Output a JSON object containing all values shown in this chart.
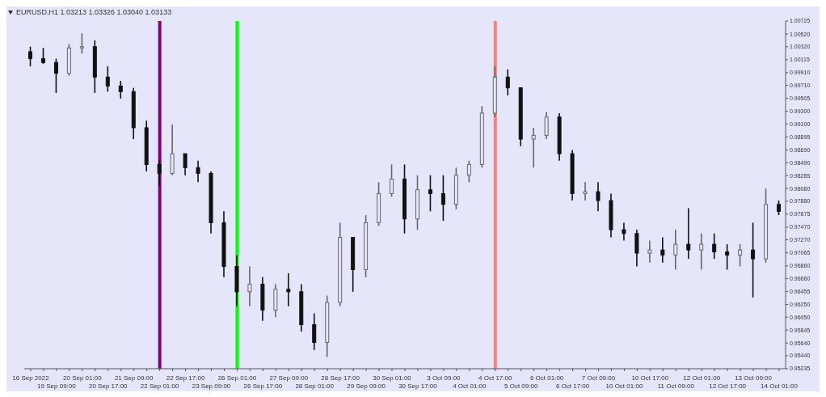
{
  "chart_data": {
    "type": "candlestick",
    "title": "EURUSD,H1  1.03213 1.03326 1.03040 1.03133",
    "categories": [
      "16 Sep 2022",
      null,
      "19 Sep 09:00",
      null,
      "20 Sep 01:00",
      null,
      "20 Sep 17:00",
      null,
      "21 Sep 09:00",
      null,
      "22 Sep 01:00",
      null,
      "22 Sep 17:00",
      null,
      "23 Sep 09:00",
      null,
      "26 Sep 01:00",
      null,
      "26 Sep 17:00",
      null,
      "27 Sep 09:00",
      null,
      "28 Sep 01:00",
      null,
      "28 Sep 17:00",
      null,
      "29 Sep 09:00",
      null,
      "30 Sep 01:00",
      null,
      "30 Sep 17:00",
      null,
      "3 Oct 09:00",
      null,
      "4 Oct 01:00",
      null,
      "4 Oct 17:00",
      null,
      "5 Oct 09:00",
      null,
      "6 Oct 01:00",
      null,
      "6 Oct 17:00",
      null,
      "7 Oct 09:00",
      null,
      "10 Oct 01:00",
      null,
      "10 Oct 17:00",
      null,
      "11 Oct 09:00",
      null,
      "12 Oct 01:00",
      null,
      "12 Oct 17:00",
      null,
      "13 Oct 09:00",
      null,
      "14 Oct 01:00"
    ],
    "ohlc": [
      [
        1.0024,
        1.0032,
        1.0001,
        1.0013
      ],
      [
        1.0013,
        1.003,
        1.0005,
        1.0007
      ],
      [
        1.0007,
        1.0013,
        0.9959,
        0.999
      ],
      [
        0.999,
        1.0036,
        0.9986,
        1.003
      ],
      [
        1.003,
        1.0053,
        1.0021,
        1.0032
      ],
      [
        1.0032,
        1.0042,
        0.9959,
        0.9984
      ],
      [
        0.9984,
        1.0001,
        0.9961,
        0.997
      ],
      [
        0.997,
        0.9978,
        0.995,
        0.9961
      ],
      [
        0.9961,
        0.9967,
        0.9886,
        0.9904
      ],
      [
        0.9904,
        0.9915,
        0.9835,
        0.9846
      ],
      [
        0.9846,
        0.9852,
        0.9812,
        0.9832
      ],
      [
        0.9832,
        0.9909,
        0.9829,
        0.9863
      ],
      [
        0.9863,
        0.9863,
        0.9829,
        0.9841
      ],
      [
        0.9841,
        0.9852,
        0.9818,
        0.9832
      ],
      [
        0.9832,
        0.9835,
        0.9737,
        0.9754
      ],
      [
        0.9754,
        0.9772,
        0.9668,
        0.9685
      ],
      [
        0.9685,
        0.9703,
        0.9622,
        0.9645
      ],
      [
        0.9645,
        0.9685,
        0.9622,
        0.9657
      ],
      [
        0.9657,
        0.9668,
        0.9599,
        0.9616
      ],
      [
        0.9616,
        0.9657,
        0.9605,
        0.9649
      ],
      [
        0.9649,
        0.9674,
        0.9622,
        0.9645
      ],
      [
        0.9645,
        0.9657,
        0.9582,
        0.9593
      ],
      [
        0.9593,
        0.9611,
        0.9553,
        0.9565
      ],
      [
        0.9565,
        0.9639,
        0.9542,
        0.9628
      ],
      [
        0.9628,
        0.9754,
        0.9622,
        0.9731
      ],
      [
        0.9731,
        0.9731,
        0.9645,
        0.968
      ],
      [
        0.968,
        0.9766,
        0.9668,
        0.9754
      ],
      [
        0.9754,
        0.9818,
        0.9749,
        0.98
      ],
      [
        0.98,
        0.9846,
        0.9795,
        0.9823
      ],
      [
        0.9823,
        0.9846,
        0.9737,
        0.976
      ],
      [
        0.976,
        0.9829,
        0.9743,
        0.9806
      ],
      [
        0.9806,
        0.9829,
        0.9772,
        0.98
      ],
      [
        0.98,
        0.9829,
        0.9757,
        0.9783
      ],
      [
        0.9783,
        0.9841,
        0.9775,
        0.9829
      ],
      [
        0.9829,
        0.9852,
        0.9818,
        0.9846
      ],
      [
        0.9846,
        0.9938,
        0.9841,
        0.9927
      ],
      [
        0.9927,
        1.0001,
        0.9921,
        0.9984
      ],
      [
        0.9984,
        0.9996,
        0.9955,
        0.9967
      ],
      [
        0.9967,
        0.9967,
        0.9875,
        0.9886
      ],
      [
        0.9886,
        0.9904,
        0.9841,
        0.9892
      ],
      [
        0.9892,
        0.9929,
        0.9886,
        0.9921
      ],
      [
        0.9921,
        0.9927,
        0.9852,
        0.9863
      ],
      [
        0.9863,
        0.9869,
        0.9789,
        0.98
      ],
      [
        0.98,
        0.9818,
        0.9789,
        0.9803
      ],
      [
        0.9803,
        0.9818,
        0.9772,
        0.9789
      ],
      [
        0.9789,
        0.98,
        0.9731,
        0.9743
      ],
      [
        0.9743,
        0.9754,
        0.9726,
        0.9737
      ],
      [
        0.9737,
        0.9743,
        0.9685,
        0.9706
      ],
      [
        0.9706,
        0.9726,
        0.9691,
        0.9711
      ],
      [
        0.9711,
        0.9731,
        0.9691,
        0.9703
      ],
      [
        0.9703,
        0.9743,
        0.968,
        0.972
      ],
      [
        0.972,
        0.9777,
        0.9697,
        0.9711
      ],
      [
        0.9711,
        0.9737,
        0.968,
        0.972
      ],
      [
        0.972,
        0.9737,
        0.9697,
        0.9708
      ],
      [
        0.9708,
        0.972,
        0.968,
        0.9703
      ],
      [
        0.9703,
        0.972,
        0.9685,
        0.9711
      ],
      [
        0.9711,
        0.9754,
        0.9636,
        0.9697
      ],
      [
        0.9697,
        0.9808,
        0.9691,
        0.9783
      ],
      [
        0.9783,
        0.9789,
        0.9766,
        0.9772
      ]
    ],
    "ylim": [
      0.95235,
      1.00725
    ],
    "yticks": [
      {
        "value": 0.95235,
        "label": "0.95235"
      },
      {
        "value": 0.9544,
        "label": "0.95440"
      },
      {
        "value": 0.9564,
        "label": "0.95640"
      },
      {
        "value": 0.95845,
        "label": "0.95845"
      },
      {
        "value": 0.9605,
        "label": "0.96050"
      },
      {
        "value": 0.9625,
        "label": "0.96250"
      },
      {
        "value": 0.96455,
        "label": "0.96455"
      },
      {
        "value": 0.9666,
        "label": "0.96660"
      },
      {
        "value": 0.9686,
        "label": "0.96860"
      },
      {
        "value": 0.97065,
        "label": "0.97065"
      },
      {
        "value": 0.9727,
        "label": "0.97270"
      },
      {
        "value": 0.9747,
        "label": "0.97470"
      },
      {
        "value": 0.97675,
        "label": "0.97675"
      },
      {
        "value": 0.9788,
        "label": "0.97880"
      },
      {
        "value": 0.9808,
        "label": "0.98080"
      },
      {
        "value": 0.98285,
        "label": "0.98285"
      },
      {
        "value": 0.9849,
        "label": "0.98490"
      },
      {
        "value": 0.9869,
        "label": "0.98690"
      },
      {
        "value": 0.98895,
        "label": "0.98895"
      },
      {
        "value": 0.991,
        "label": "0.99100"
      },
      {
        "value": 0.993,
        "label": "0.99300"
      },
      {
        "value": 0.99505,
        "label": "0.99505"
      },
      {
        "value": 0.9971,
        "label": "0.99710"
      },
      {
        "value": 0.9991,
        "label": "0.99910"
      },
      {
        "value": 1.00115,
        "label": "1.00115"
      },
      {
        "value": 1.0032,
        "label": "1.00320"
      },
      {
        "value": 1.0052,
        "label": "1.00520"
      },
      {
        "value": 1.00725,
        "label": "1.00725"
      }
    ],
    "ref_lines": [
      {
        "axis": "x",
        "value": "22 Sep 01:00",
        "label": null,
        "color": "#800080"
      },
      {
        "axis": "x",
        "value": "26 Sep 01:00",
        "label": null,
        "color": "#00ff00"
      },
      {
        "axis": "x",
        "value": "4 Oct 17:00",
        "label": null,
        "color": "#fa8072"
      }
    ],
    "grid": false,
    "legend": false
  }
}
